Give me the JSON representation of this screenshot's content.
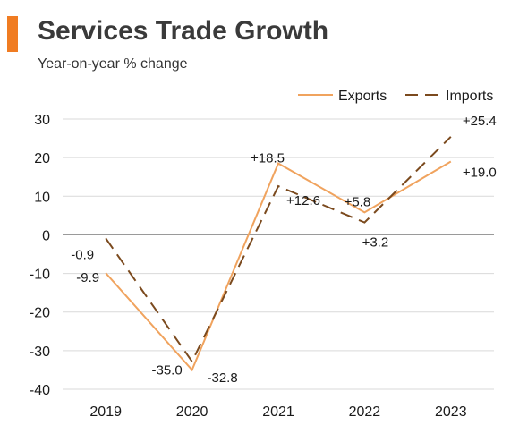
{
  "header": {
    "title": "Services Trade Growth",
    "subtitle": "Year-on-year % change"
  },
  "colors": {
    "accent": "#f07c22",
    "exports": "#f0a35e",
    "imports": "#7b4a1e",
    "grid": "#d9d9d9",
    "zero_line": "#8c8c8c"
  },
  "chart_data": {
    "type": "line",
    "categories": [
      "2019",
      "2020",
      "2021",
      "2022",
      "2023"
    ],
    "ylim": [
      -40,
      30
    ],
    "yticks": [
      30,
      20,
      10,
      0,
      -10,
      -20,
      -30,
      -40
    ],
    "grid": true,
    "legend_position": "top-right",
    "series": [
      {
        "name": "Exports",
        "values": [
          -9.9,
          -35.0,
          18.5,
          5.8,
          19.0
        ],
        "labels": [
          "-9.9",
          "-35.0",
          "+18.5",
          "+5.8",
          "+19.0"
        ],
        "style": "solid"
      },
      {
        "name": "Imports",
        "values": [
          -0.9,
          -32.8,
          12.6,
          3.2,
          25.4
        ],
        "labels": [
          "-0.9",
          "-32.8",
          "+12.6",
          "+3.2",
          "+25.4"
        ],
        "style": "dashed"
      }
    ]
  }
}
